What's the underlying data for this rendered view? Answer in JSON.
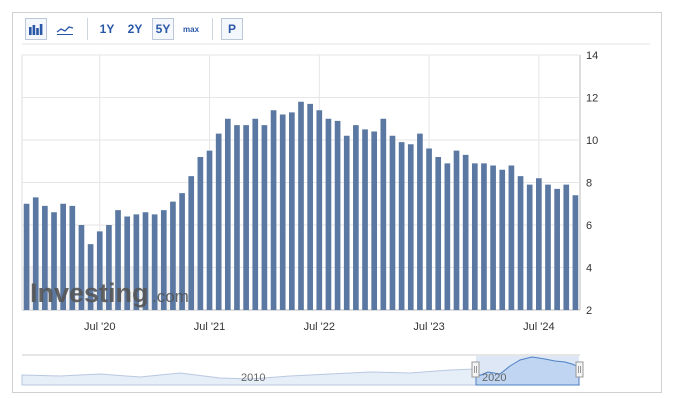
{
  "toolbar": {
    "bar_icon": "bar-chart-icon",
    "line_icon": "line-chart-icon",
    "ranges": [
      "1Y",
      "2Y",
      "5Y",
      "max"
    ],
    "active_range": "5Y",
    "pin_label": "P"
  },
  "watermark": {
    "brand": "Investing",
    "suffix": ".com"
  },
  "navigator": {
    "labels": [
      "2010",
      "2020"
    ]
  },
  "colors": {
    "bar": "#5a78a1",
    "grid": "#e6e6e6",
    "axis_text": "#333333",
    "navigator_fill": "#bfd5f2"
  },
  "chart_data": {
    "type": "bar",
    "ylim": [
      2,
      14
    ],
    "yticks": [
      2,
      4,
      6,
      8,
      10,
      12,
      14
    ],
    "xtick_labels": [
      "Jul '20",
      "Jul '21",
      "Jul '22",
      "Jul '23",
      "Jul '24"
    ],
    "x_start": "2019-11",
    "x_end": "2024-10",
    "grid": true,
    "series": [
      {
        "values": [
          7.0,
          7.3,
          6.9,
          6.6,
          7.0,
          6.9,
          6.0,
          5.1,
          5.7,
          6.0,
          6.7,
          6.4,
          6.5,
          6.6,
          6.5,
          6.7,
          7.1,
          7.5,
          8.3,
          9.2,
          9.5,
          10.3,
          11.0,
          10.7,
          10.7,
          11.0,
          10.7,
          11.4,
          11.2,
          11.3,
          11.8,
          11.7,
          11.4,
          11.0,
          10.9,
          10.2,
          10.7,
          10.5,
          10.4,
          11.0,
          10.2,
          9.9,
          9.8,
          10.3,
          9.6,
          9.2,
          8.9,
          9.5,
          9.3,
          8.9,
          8.9,
          8.8,
          8.6,
          8.8,
          8.3,
          7.9,
          8.2,
          7.9,
          7.7,
          7.9,
          7.4
        ]
      }
    ]
  }
}
